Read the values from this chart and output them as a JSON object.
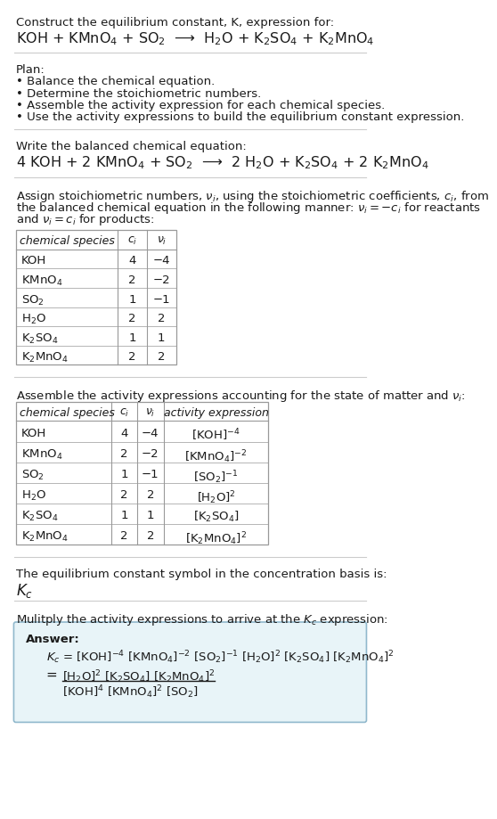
{
  "title_line1": "Construct the equilibrium constant, K, expression for:",
  "title_line2_latex": "KOH + KMnO$_4$ + SO$_2$  ⟶  H$_2$O + K$_2$SO$_4$ + K$_2$MnO$_4$",
  "plan_title": "Plan:",
  "plan_items": [
    "• Balance the chemical equation.",
    "• Determine the stoichiometric numbers.",
    "• Assemble the activity expression for each chemical species.",
    "• Use the activity expressions to build the equilibrium constant expression."
  ],
  "balanced_label": "Write the balanced chemical equation:",
  "balanced_eq": "4 KOH + 2 KMnO$_4$ + SO$_2$  ⟶  2 H$_2$O + K$_2$SO$_4$ + 2 K$_2$MnO$_4$",
  "stoich_lines": [
    "Assign stoichiometric numbers, $\\nu_i$, using the stoichiometric coefficients, $c_i$, from",
    "the balanced chemical equation in the following manner: $\\nu_i = -c_i$ for reactants",
    "and $\\nu_i = c_i$ for products:"
  ],
  "table1_headers": [
    "chemical species",
    "$c_i$",
    "$\\nu_i$"
  ],
  "table1_data": [
    [
      "KOH",
      "4",
      "−4"
    ],
    [
      "KMnO$_4$",
      "2",
      "−2"
    ],
    [
      "SO$_2$",
      "1",
      "−1"
    ],
    [
      "H$_2$O",
      "2",
      "2"
    ],
    [
      "K$_2$SO$_4$",
      "1",
      "1"
    ],
    [
      "K$_2$MnO$_4$",
      "2",
      "2"
    ]
  ],
  "activity_label": "Assemble the activity expressions accounting for the state of matter and $\\nu_i$:",
  "table2_headers": [
    "chemical species",
    "$c_i$",
    "$\\nu_i$",
    "activity expression"
  ],
  "table2_data": [
    [
      "KOH",
      "4",
      "−4",
      "[KOH]$^{-4}$"
    ],
    [
      "KMnO$_4$",
      "2",
      "−2",
      "[KMnO$_4$]$^{-2}$"
    ],
    [
      "SO$_2$",
      "1",
      "−1",
      "[SO$_2$]$^{-1}$"
    ],
    [
      "H$_2$O",
      "2",
      "2",
      "[H$_2$O]$^2$"
    ],
    [
      "K$_2$SO$_4$",
      "1",
      "1",
      "[K$_2$SO$_4$]"
    ],
    [
      "K$_2$MnO$_4$",
      "2",
      "2",
      "[K$_2$MnO$_4$]$^2$"
    ]
  ],
  "kc_label": "The equilibrium constant symbol in the concentration basis is:",
  "kc_symbol": "$K_c$",
  "multiply_label": "Mulitply the activity expressions to arrive at the $K_c$ expression:",
  "answer_label": "Answer:",
  "answer_line1": "$K_c$ = [KOH]$^{-4}$ [KMnO$_4$]$^{-2}$ [SO$_2$]$^{-1}$ [H$_2$O]$^2$ [K$_2$SO$_4$] [K$_2$MnO$_4$]$^2$",
  "answer_eq_sign": "=",
  "answer_line2_num": "[H$_2$O]$^2$ [K$_2$SO$_4$] [K$_2$MnO$_4$]$^2$",
  "answer_line2_den": "[KOH]$^4$ [KMnO$_4$]$^2$ [SO$_2$]",
  "bg_color": "#ffffff",
  "text_color": "#1a1a1a",
  "table_border_color": "#999999",
  "answer_box_fill": "#e8f4f8",
  "answer_box_border": "#90b8cc",
  "line_color": "#cccccc"
}
